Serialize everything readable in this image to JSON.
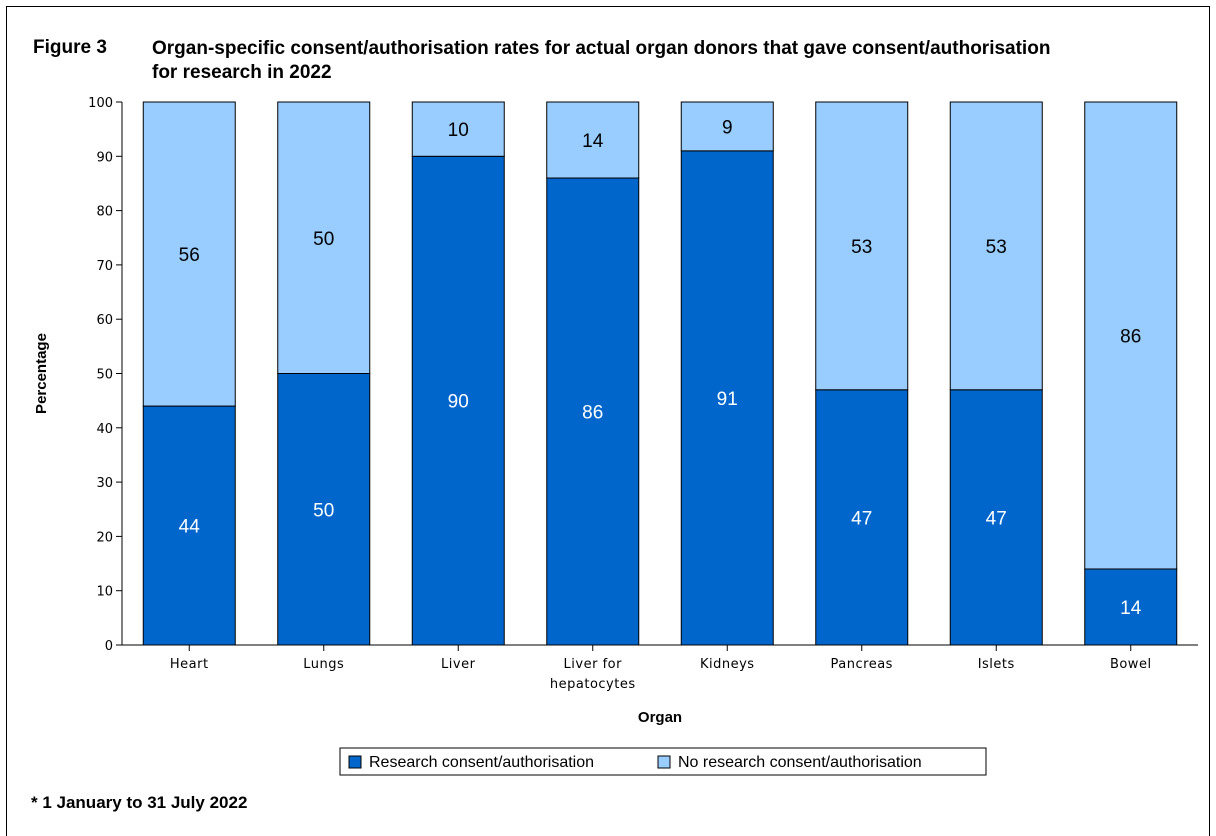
{
  "figure_label": "Figure 3",
  "figure_title": "Organ-specific consent/authorisation rates for actual organ donors that gave consent/authorisation for research in 2022",
  "footnote": "* 1 January to 31 July 2022",
  "colors": {
    "research": "#0066cc",
    "no_research": "#99ccff",
    "axis": "#000000"
  },
  "chart_data": {
    "type": "bar",
    "stacked": true,
    "categories": [
      [
        "Heart"
      ],
      [
        "Lungs"
      ],
      [
        "Liver"
      ],
      [
        "Liver for",
        "hepatocytes"
      ],
      [
        "Kidneys"
      ],
      [
        "Pancreas"
      ],
      [
        "Islets"
      ],
      [
        "Bowel"
      ]
    ],
    "series": [
      {
        "name": "Research consent/authorisation",
        "values": [
          44,
          50,
          90,
          86,
          91,
          47,
          47,
          14
        ]
      },
      {
        "name": "No research consent/authorisation",
        "values": [
          56,
          50,
          10,
          14,
          9,
          53,
          53,
          86
        ]
      }
    ],
    "xlabel": "Organ",
    "ylabel": "Percentage",
    "ylim": [
      0,
      100
    ],
    "yticks": [
      0,
      10,
      20,
      30,
      40,
      50,
      60,
      70,
      80,
      90,
      100
    ],
    "grid": false,
    "legend_position": "bottom"
  }
}
